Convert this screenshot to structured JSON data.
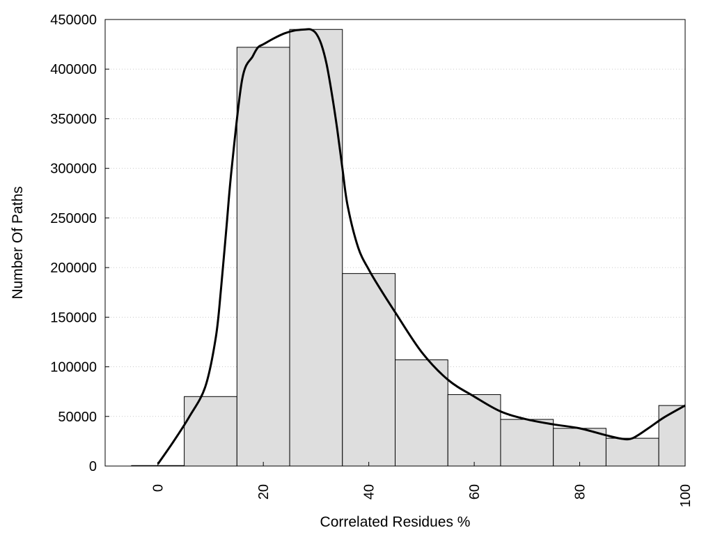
{
  "chart_data": {
    "type": "bar",
    "title": "",
    "xlabel": "Correlated Residues %",
    "ylabel": "Number Of Paths",
    "xlim": [
      -10,
      100
    ],
    "ylim": [
      0,
      450000
    ],
    "grid": true,
    "bar_color": "#dedede",
    "line_color": "#000000",
    "x_ticks": [
      "0",
      "20",
      "40",
      "60",
      "80",
      "100"
    ],
    "y_ticks": [
      "0",
      "50000",
      "100000",
      "150000",
      "200000",
      "250000",
      "300000",
      "350000",
      "400000",
      "450000"
    ],
    "bins": [
      {
        "center": 0,
        "value": 500
      },
      {
        "center": 10,
        "value": 70000
      },
      {
        "center": 20,
        "value": 422000
      },
      {
        "center": 30,
        "value": 440000
      },
      {
        "center": 40,
        "value": 194000
      },
      {
        "center": 50,
        "value": 107000
      },
      {
        "center": 60,
        "value": 72000
      },
      {
        "center": 70,
        "value": 47000
      },
      {
        "center": 80,
        "value": 38000
      },
      {
        "center": 90,
        "value": 28000
      },
      {
        "center": 100,
        "value": 61000
      }
    ],
    "bin_width": 10,
    "series": [
      {
        "type": "line",
        "x": [
          0,
          3,
          6,
          9,
          11,
          12,
          13,
          14,
          16,
          18,
          19,
          20,
          22,
          24,
          26,
          28,
          29,
          30,
          31,
          32,
          33,
          34,
          35,
          36,
          38,
          40,
          42,
          45,
          50,
          55,
          60,
          65,
          70,
          75,
          80,
          85,
          88,
          90,
          93,
          96,
          100
        ],
        "y": [
          2000,
          25000,
          50000,
          80000,
          130000,
          180000,
          240000,
          300000,
          390000,
          413000,
          422000,
          425000,
          431000,
          436000,
          439000,
          440000,
          440000,
          436000,
          425000,
          405000,
          375000,
          340000,
          300000,
          262000,
          220000,
          198000,
          180000,
          155000,
          115000,
          87000,
          70000,
          55000,
          47000,
          42000,
          38000,
          31000,
          27500,
          28000,
          38000,
          49000,
          61000
        ]
      }
    ]
  }
}
